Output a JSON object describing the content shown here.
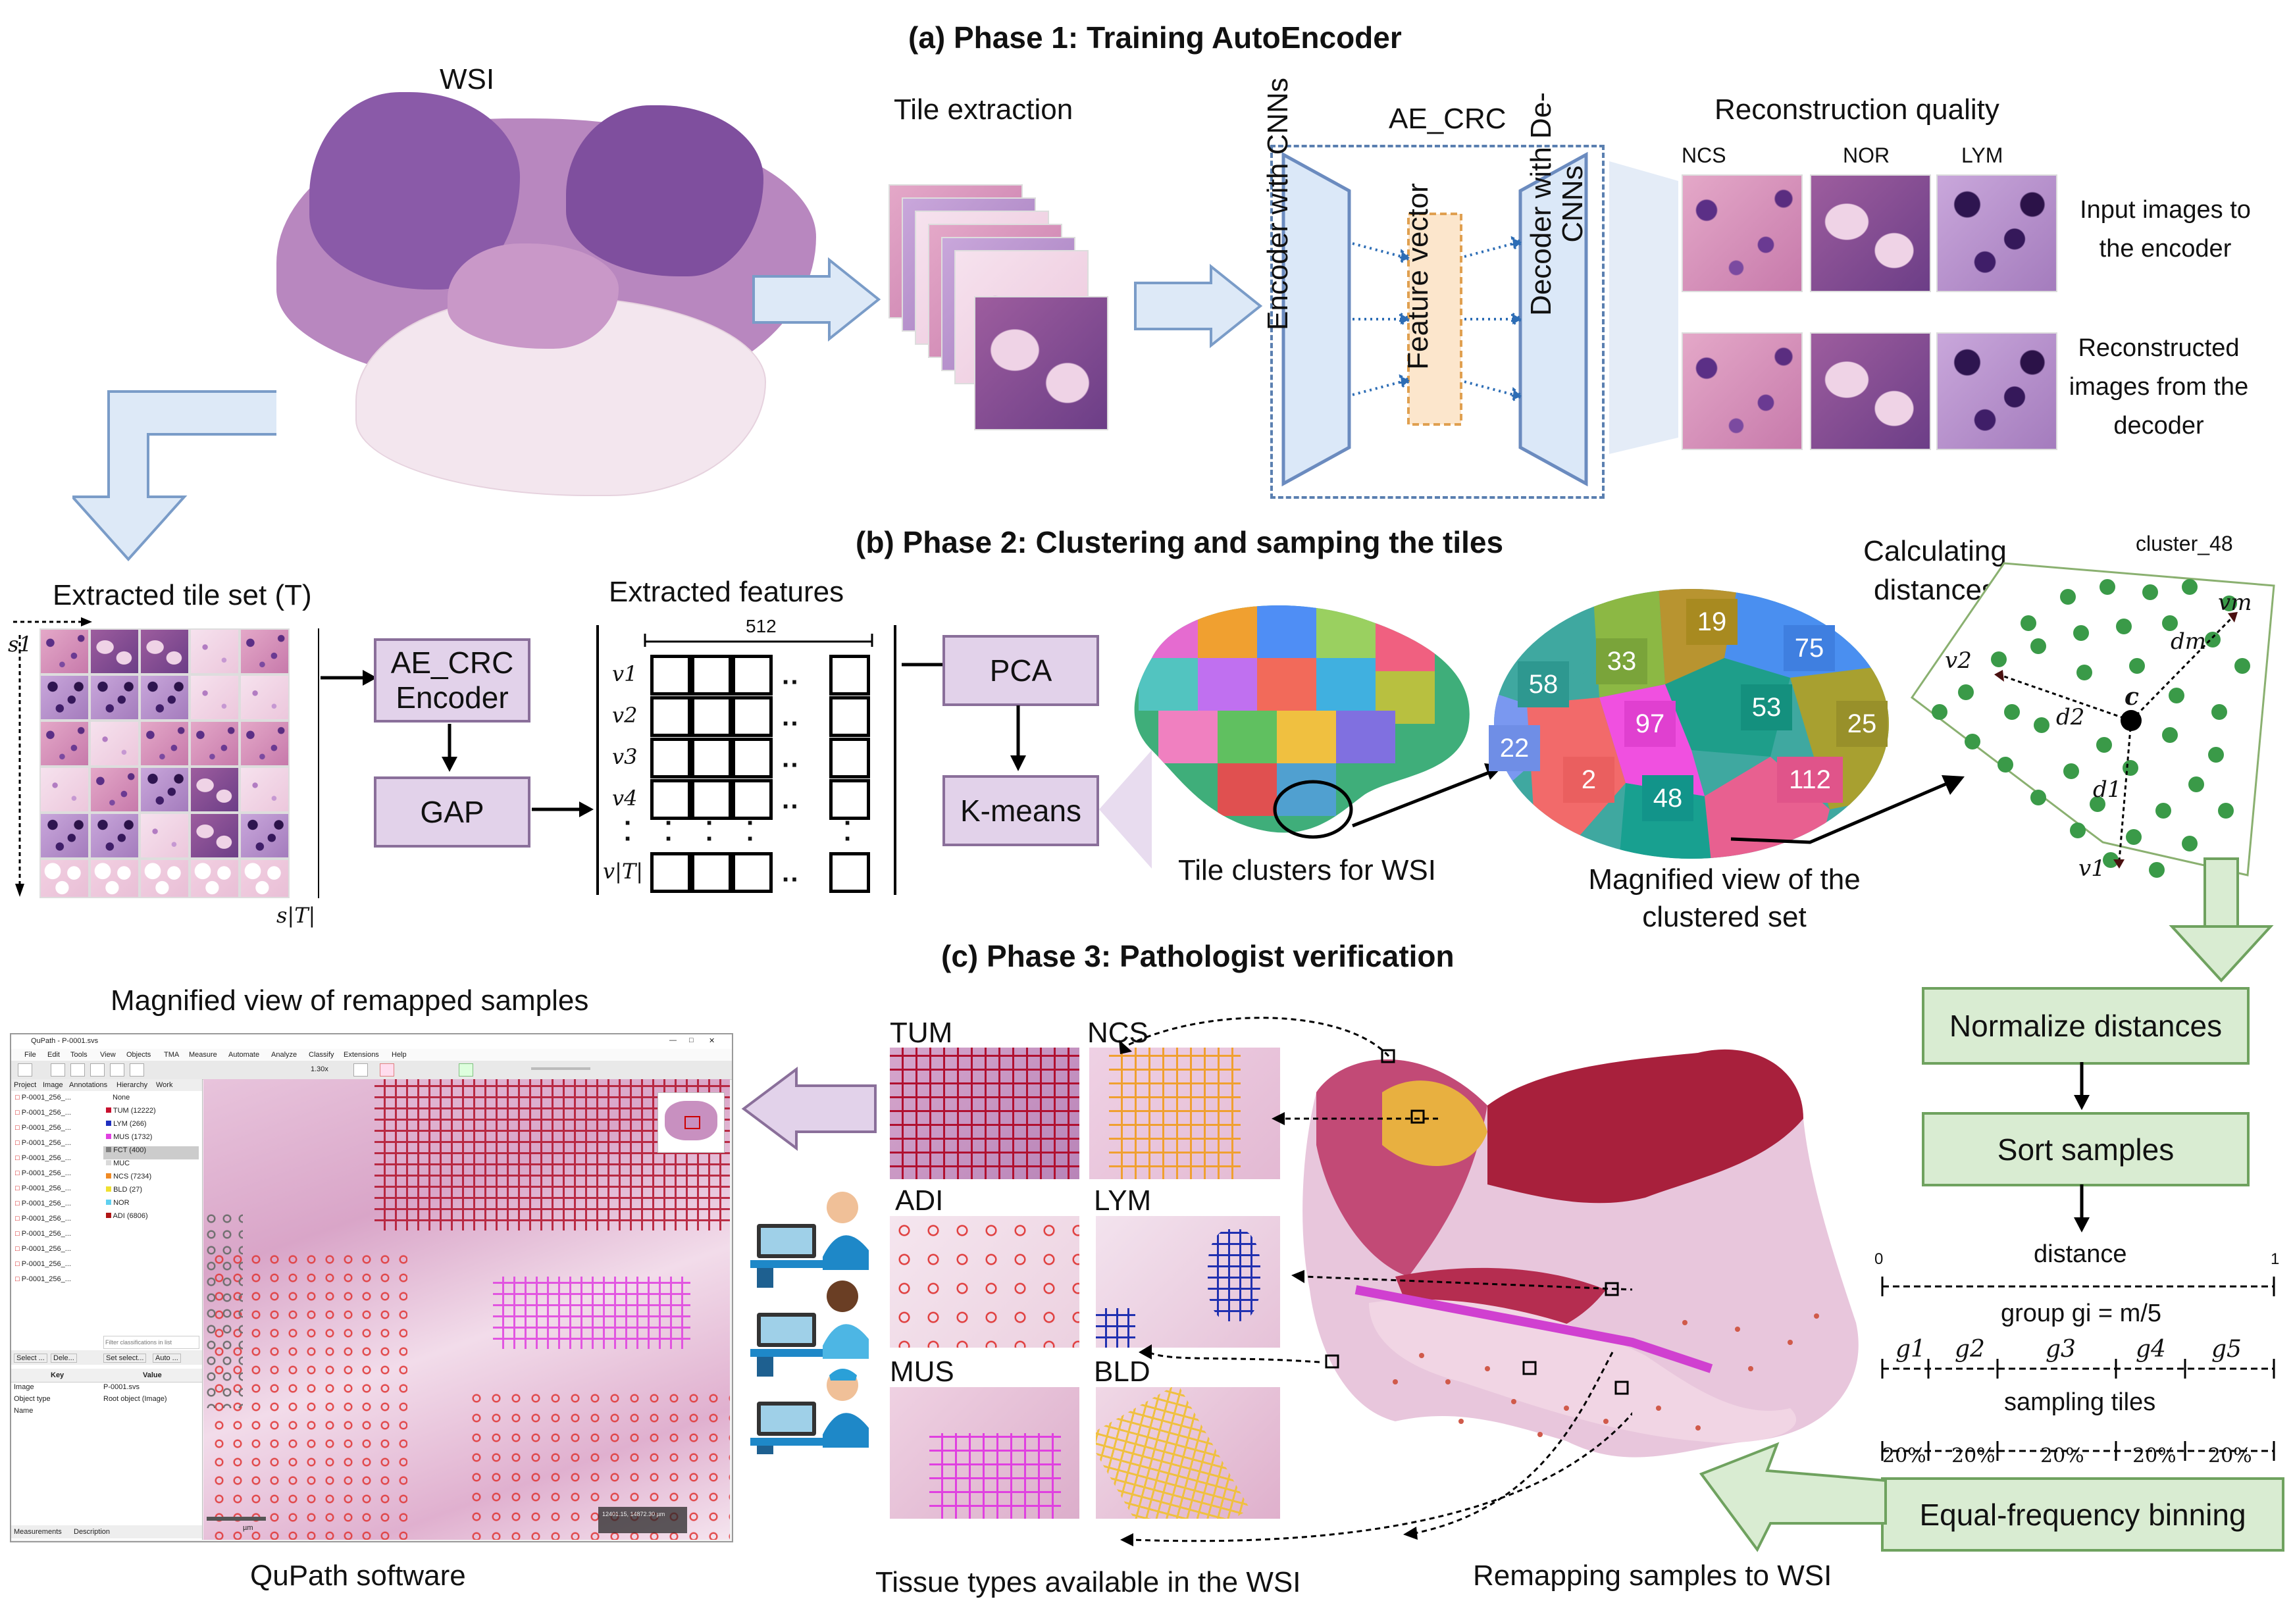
{
  "phase1": {
    "title": "(a) Phase 1: Training AutoEncoder",
    "wsi_label": "WSI",
    "tile_extraction": "Tile extraction",
    "ae_title": "AE_CRC",
    "encoder": "Encoder with CNNs",
    "feature_vector": "Feature vector",
    "decoder": "Decoder with De-CNNs",
    "recon_title": "Reconstruction quality",
    "recon_cols": [
      "NCS",
      "NOR",
      "LYM"
    ],
    "input_caption": "Input images to the encoder",
    "recon_caption": "Reconstructed images from the decoder"
  },
  "phase2": {
    "title": "(b) Phase 2: Clustering and samping the tiles",
    "tile_set": "Extracted tile set (T)",
    "s1": "s1",
    "s_last": "s|T|",
    "ae_encoder": "AE_CRC Encoder",
    "gap": "GAP",
    "features_title": "Extracted features",
    "feature_dim": "512",
    "rows": [
      "v1",
      "v2",
      "v3",
      "v4",
      "v|T|"
    ],
    "pca": "PCA",
    "kmeans": "K-means",
    "clusters_caption": "Tile clusters for WSI",
    "magnified_caption": "Magnified view of the clustered set",
    "cluster_ids": [
      "19",
      "33",
      "75",
      "58",
      "53",
      "97",
      "25",
      "22",
      "2",
      "48",
      "112"
    ],
    "calc_title": "Calculating distances",
    "cluster_name": "cluster_48",
    "centroid": "c",
    "distance_labels": [
      "vm",
      "dm",
      "v2",
      "d2",
      "d1",
      "v1"
    ]
  },
  "phase3": {
    "title": "(c) Phase 3: Pathologist verification",
    "magnified_remap": "Magnified view of remapped samples",
    "qupath_caption": "QuPath software",
    "tissue_caption": "Tissue types available in the WSI",
    "remap_caption": "Remapping samples to WSI",
    "tissue_types": [
      "TUM",
      "NCS",
      "ADI",
      "LYM",
      "MUS",
      "BLD"
    ],
    "normalize": "Normalize distances",
    "sort": "Sort samples",
    "distance_axis": "distance",
    "axis_min": "0",
    "axis_max": "1",
    "group_label": "group gi = m/5",
    "groups": [
      "g1",
      "g2",
      "g3",
      "g4",
      "g5"
    ],
    "sampling": "sampling tiles",
    "percents": [
      "20%",
      "20%",
      "20%",
      "20%",
      "20%"
    ],
    "binning": "Equal-frequency binning"
  },
  "qupath": {
    "window_title": "QuPath - P-0001.svs",
    "menu": [
      "File",
      "Edit",
      "Tools",
      "View",
      "Objects",
      "TMA",
      "Measure",
      "Automate",
      "Analyze",
      "Classify",
      "Extensions",
      "Help"
    ],
    "tabs": [
      "Project",
      "Image",
      "Annotations",
      "Hierarchy",
      "Work"
    ],
    "zoom": "1.30x",
    "annotations": [
      "P-0001_256_...",
      "P-0001_256_...",
      "P-0001_256_...",
      "P-0001_256_...",
      "P-0001_256_...",
      "P-0001_256_...",
      "P-0001_256_...",
      "P-0001_256_...",
      "P-0001_256_...",
      "P-0001_256_...",
      "P-0001_256_...",
      "P-0001_256_...",
      "P-0001_256_..."
    ],
    "classes": [
      "None",
      "TUM (12222)",
      "LYM (266)",
      "MUS (1732)",
      "FCT (400)",
      "MUC",
      "NCS (7234)",
      "BLD (27)",
      "NOR",
      "ADI (6806)"
    ],
    "class_colors": [
      "#ffffff",
      "#c8102e",
      "#1f2fbf",
      "#e040e0",
      "#7f7f7f",
      "#d9d9d9",
      "#f08a24",
      "#f0e030",
      "#5fd0f0",
      "#b01515"
    ],
    "filter_placeholder": "Filter classifications in list",
    "buttons": [
      "Select ...",
      "Dele...",
      "Set select...",
      "Auto ..."
    ],
    "kv_headers": [
      "Key",
      "Value"
    ],
    "kv_rows": [
      [
        "Image",
        "P-0001.svs"
      ],
      [
        "Object type",
        "Root object (Image)"
      ],
      [
        "Name",
        ""
      ]
    ],
    "bottom_tabs": [
      "Measurements",
      "Description"
    ],
    "scale": "µm",
    "coords": "12401.15, 14872.30 µm"
  },
  "colors": {
    "purple_fill": "#e2d2ea",
    "purple_border": "#8a6f9a",
    "green_fill": "#d9ecd2",
    "green_border": "#6fa25f",
    "arrow_blue": "#dde9f7",
    "arrow_blue_border": "#7a9cc8"
  }
}
